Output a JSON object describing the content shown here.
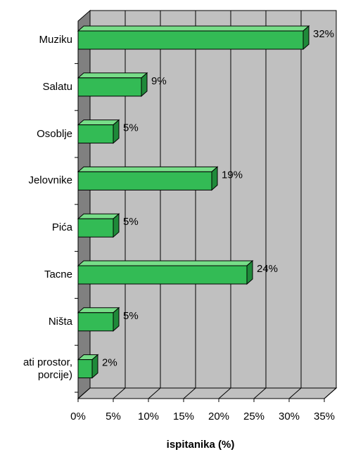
{
  "chart_data": {
    "type": "bar",
    "orientation": "horizontal",
    "categories": [
      "Muziku",
      "Salatu",
      "Osoblje",
      "Jelovnike",
      "Pića",
      "Tacne",
      "Ništa",
      "ati prostor,\nporcije)"
    ],
    "values": [
      32,
      9,
      5,
      19,
      5,
      24,
      5,
      2
    ],
    "value_labels": [
      "32%",
      "9%",
      "5%",
      "19%",
      "5%",
      "24%",
      "5%",
      "2%"
    ],
    "color": "#33bb55",
    "xlim": [
      0,
      35
    ],
    "xticks": [
      {
        "value": 0,
        "label": "0%"
      },
      {
        "value": 5,
        "label": "5%"
      },
      {
        "value": 10,
        "label": "10%"
      },
      {
        "value": 15,
        "label": "15%"
      },
      {
        "value": 20,
        "label": "20%"
      },
      {
        "value": 25,
        "label": "25%"
      },
      {
        "value": 30,
        "label": "30%"
      },
      {
        "value": 35,
        "label": "35%"
      }
    ],
    "xlabel": "ispitanika (%)",
    "grid": true
  }
}
